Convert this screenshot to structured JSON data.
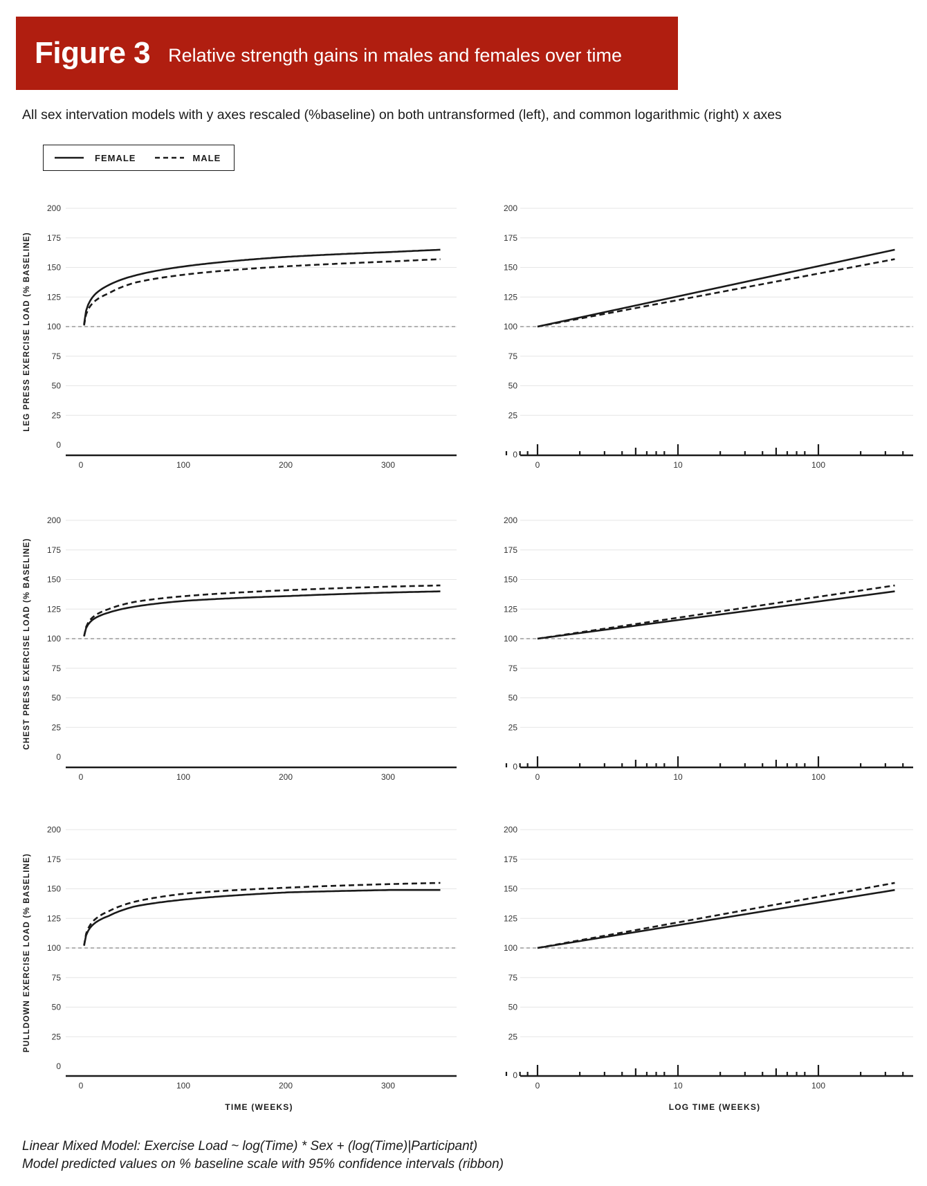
{
  "header": {
    "figure_label": "Figure 3",
    "title": "Relative strength gains in males and females over time"
  },
  "subtitle": "All sex intervation models with y axes rescaled (%baseline) on both untransformed (left), and common logarithmic (right) x axes",
  "legend": {
    "female_label": "FEMALE",
    "male_label": "MALE"
  },
  "footer": {
    "line1": "Linear Mixed Model: Exercise Load ~ log(Time) * Sex + (log(Time)|Participant)",
    "line2": "Model predicted values on % baseline scale with 95% confidence intervals (ribbon)"
  },
  "chart_data": [
    {
      "type": "line",
      "panel": "leg-press-linear",
      "ylabel": "LEG PRESS EXERCISE LOAD (% BASELINE)",
      "xlabel": "",
      "x_scale": "linear",
      "xlim": [
        0,
        360
      ],
      "ylim": [
        0,
        200
      ],
      "x_ticks": [
        0,
        100,
        200,
        300
      ],
      "y_ticks": [
        0,
        25,
        50,
        75,
        100,
        125,
        150,
        175,
        200
      ],
      "reference_line": 100,
      "grid": true,
      "x": [
        1,
        25,
        50,
        100,
        200,
        300,
        350
      ],
      "series": [
        {
          "name": "FEMALE",
          "style": "solid",
          "values": [
            102,
            135,
            143,
            151,
            159,
            163,
            165
          ]
        },
        {
          "name": "MALE",
          "style": "dashed",
          "values": [
            101,
            128,
            137,
            144,
            151,
            155,
            157
          ]
        }
      ]
    },
    {
      "type": "line",
      "panel": "leg-press-log",
      "ylabel": "",
      "xlabel": "",
      "x_scale": "log",
      "xlim": [
        0.5,
        800
      ],
      "ylim": [
        0,
        200
      ],
      "x_ticks": [
        1,
        10,
        100
      ],
      "x_tick_labels": [
        "0",
        "10",
        "100"
      ],
      "y_ticks": [
        0,
        25,
        50,
        75,
        100,
        125,
        150,
        175,
        200
      ],
      "reference_line": 100,
      "grid": true,
      "rug": true,
      "x": [
        1,
        350
      ],
      "series": [
        {
          "name": "FEMALE",
          "style": "solid",
          "values": [
            100,
            165
          ]
        },
        {
          "name": "MALE",
          "style": "dashed",
          "values": [
            100,
            157
          ]
        }
      ]
    },
    {
      "type": "line",
      "panel": "chest-press-linear",
      "ylabel": "CHEST PRESS EXERCISE LOAD (% BASELINE)",
      "xlabel": "",
      "x_scale": "linear",
      "xlim": [
        0,
        360
      ],
      "ylim": [
        0,
        200
      ],
      "x_ticks": [
        0,
        100,
        200,
        300
      ],
      "y_ticks": [
        0,
        25,
        50,
        75,
        100,
        125,
        150,
        175,
        200
      ],
      "reference_line": 100,
      "grid": true,
      "x": [
        1,
        25,
        50,
        100,
        200,
        300,
        350
      ],
      "series": [
        {
          "name": "FEMALE",
          "style": "solid",
          "values": [
            102,
            122,
            127,
            132,
            136,
            139,
            140
          ]
        },
        {
          "name": "MALE",
          "style": "dashed",
          "values": [
            102,
            125,
            131,
            136,
            141,
            144,
            145
          ]
        }
      ]
    },
    {
      "type": "line",
      "panel": "chest-press-log",
      "ylabel": "",
      "xlabel": "",
      "x_scale": "log",
      "xlim": [
        0.5,
        800
      ],
      "ylim": [
        0,
        200
      ],
      "x_ticks": [
        1,
        10,
        100
      ],
      "x_tick_labels": [
        "0",
        "10",
        "100"
      ],
      "y_ticks": [
        0,
        25,
        50,
        75,
        100,
        125,
        150,
        175,
        200
      ],
      "reference_line": 100,
      "grid": true,
      "rug": true,
      "x": [
        1,
        350
      ],
      "series": [
        {
          "name": "FEMALE",
          "style": "solid",
          "values": [
            100,
            140
          ]
        },
        {
          "name": "MALE",
          "style": "dashed",
          "values": [
            100,
            145
          ]
        }
      ]
    },
    {
      "type": "line",
      "panel": "pulldown-linear",
      "ylabel": "PULLDOWN EXERCISE LOAD (% BASELINE)",
      "xlabel": "TIME (WEEKS)",
      "x_scale": "linear",
      "xlim": [
        0,
        360
      ],
      "ylim": [
        0,
        200
      ],
      "x_ticks": [
        0,
        100,
        200,
        300
      ],
      "y_ticks": [
        0,
        25,
        50,
        75,
        100,
        125,
        150,
        175,
        200
      ],
      "reference_line": 100,
      "grid": true,
      "x": [
        1,
        25,
        50,
        100,
        200,
        300,
        350
      ],
      "series": [
        {
          "name": "FEMALE",
          "style": "solid",
          "values": [
            102,
            127,
            135,
            141,
            147,
            149,
            149
          ]
        },
        {
          "name": "MALE",
          "style": "dashed",
          "values": [
            102,
            131,
            139,
            146,
            151,
            154,
            155
          ]
        }
      ]
    },
    {
      "type": "line",
      "panel": "pulldown-log",
      "ylabel": "",
      "xlabel": "LOG TIME (WEEKS)",
      "x_scale": "log",
      "xlim": [
        0.5,
        800
      ],
      "ylim": [
        0,
        200
      ],
      "x_ticks": [
        1,
        10,
        100
      ],
      "x_tick_labels": [
        "0",
        "10",
        "100"
      ],
      "y_ticks": [
        0,
        25,
        50,
        75,
        100,
        125,
        150,
        175,
        200
      ],
      "reference_line": 100,
      "grid": true,
      "rug": true,
      "x": [
        1,
        350
      ],
      "series": [
        {
          "name": "FEMALE",
          "style": "solid",
          "values": [
            100,
            149
          ]
        },
        {
          "name": "MALE",
          "style": "dashed",
          "values": [
            100,
            155
          ]
        }
      ]
    }
  ]
}
